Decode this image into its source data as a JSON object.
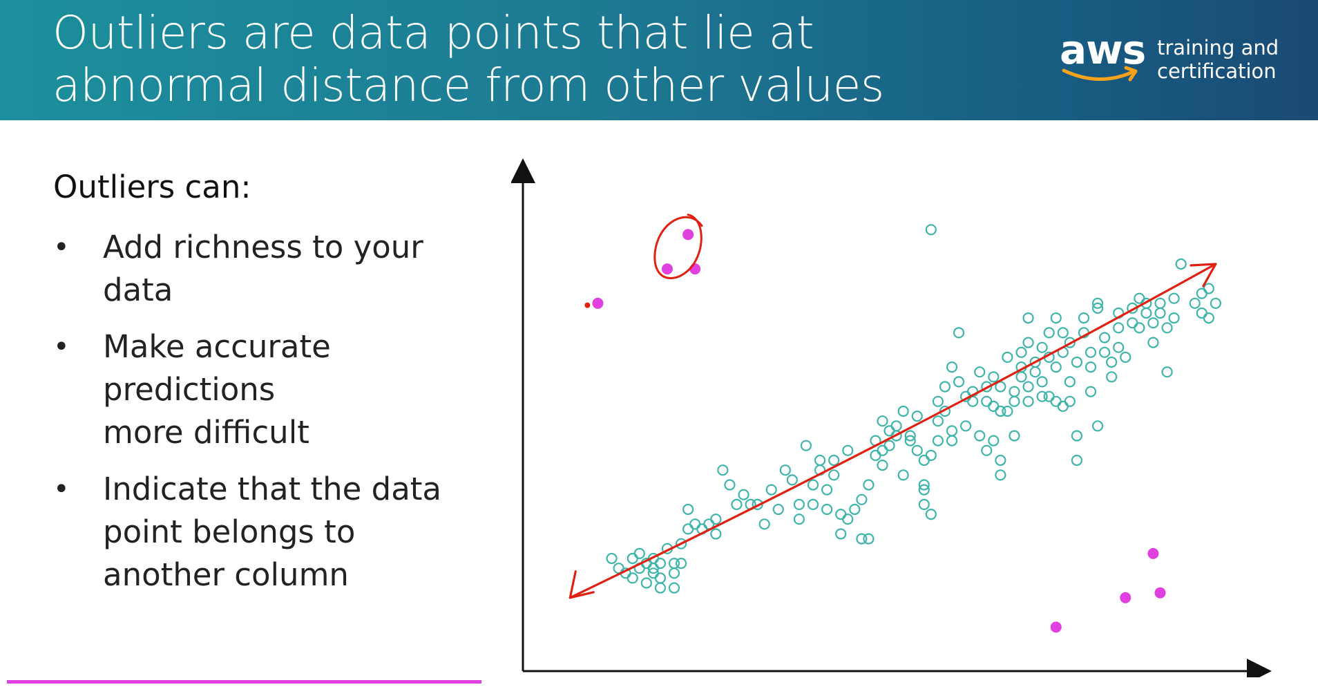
{
  "slide": {
    "title_lines": [
      "Outliers are data points that lie at",
      "abnormal distance from other values"
    ],
    "logo": {
      "wordmark": "aws",
      "tagline_lines": [
        "training and",
        "certification"
      ]
    },
    "heading": "Outliers can:",
    "bullets": [
      {
        "lines": [
          "Add richness to your",
          "data"
        ]
      },
      {
        "lines": [
          "Make accurate",
          "predictions",
          "more difficult"
        ]
      },
      {
        "lines": [
          "Indicate that the data",
          "point belongs to",
          "another column"
        ]
      }
    ]
  },
  "colors": {
    "header_teal": "#1c8f9c",
    "header_blue": "#1a4a75",
    "inlier": "#3fb5aa",
    "outlier": "#e040e0",
    "annotation": "#e02010",
    "logo_smile": "#f7a21b"
  },
  "chart_data": {
    "type": "scatter",
    "title": "",
    "xlabel": "",
    "ylabel": "",
    "xlim": [
      0,
      100
    ],
    "ylim": [
      0,
      100
    ],
    "grid": false,
    "legend": "none",
    "series": [
      {
        "kind": "inliers",
        "points": [
          [
            11,
            20
          ],
          [
            12,
            18
          ],
          [
            13,
            17
          ],
          [
            14,
            20
          ],
          [
            14,
            16
          ],
          [
            15,
            21
          ],
          [
            15,
            18
          ],
          [
            16,
            19
          ],
          [
            16,
            15
          ],
          [
            17,
            18
          ],
          [
            17,
            17
          ],
          [
            17,
            20
          ],
          [
            18,
            14
          ],
          [
            18,
            16
          ],
          [
            18,
            19
          ],
          [
            19,
            22
          ],
          [
            20,
            17
          ],
          [
            20,
            19
          ],
          [
            20,
            14
          ],
          [
            21,
            23
          ],
          [
            21,
            19
          ],
          [
            22,
            26
          ],
          [
            22,
            30
          ],
          [
            23,
            27
          ],
          [
            24,
            26
          ],
          [
            25,
            27
          ],
          [
            26,
            25
          ],
          [
            26,
            28
          ],
          [
            27,
            38
          ],
          [
            28,
            35
          ],
          [
            29,
            31
          ],
          [
            30,
            33
          ],
          [
            31,
            31
          ],
          [
            32,
            31
          ],
          [
            33,
            27
          ],
          [
            34,
            34
          ],
          [
            35,
            30
          ],
          [
            36,
            38
          ],
          [
            37,
            36
          ],
          [
            38,
            31
          ],
          [
            38,
            28
          ],
          [
            39,
            43
          ],
          [
            40,
            31
          ],
          [
            40,
            35
          ],
          [
            41,
            40
          ],
          [
            41,
            38
          ],
          [
            42,
            30
          ],
          [
            42,
            34
          ],
          [
            43,
            40
          ],
          [
            43,
            37
          ],
          [
            44,
            25
          ],
          [
            44,
            29
          ],
          [
            45,
            42
          ],
          [
            45,
            28
          ],
          [
            46,
            30
          ],
          [
            47,
            32
          ],
          [
            47,
            24
          ],
          [
            48,
            24
          ],
          [
            48,
            35
          ],
          [
            49,
            41
          ],
          [
            49,
            44
          ],
          [
            50,
            39
          ],
          [
            50,
            42
          ],
          [
            50,
            48
          ],
          [
            51,
            46
          ],
          [
            51,
            43
          ],
          [
            52,
            45
          ],
          [
            52,
            47
          ],
          [
            53,
            37
          ],
          [
            53,
            50
          ],
          [
            54,
            45
          ],
          [
            54,
            44
          ],
          [
            55,
            49
          ],
          [
            55,
            42
          ],
          [
            56,
            40
          ],
          [
            56,
            31
          ],
          [
            56,
            35
          ],
          [
            56,
            34
          ],
          [
            57,
            29
          ],
          [
            57,
            41
          ],
          [
            58,
            44
          ],
          [
            58,
            48
          ],
          [
            58,
            52
          ],
          [
            59,
            55
          ],
          [
            59,
            50
          ],
          [
            60,
            46
          ],
          [
            60,
            44
          ],
          [
            60,
            59
          ],
          [
            61,
            66
          ],
          [
            61,
            56
          ],
          [
            62,
            53
          ],
          [
            62,
            47
          ],
          [
            63,
            54
          ],
          [
            63,
            52
          ],
          [
            64,
            58
          ],
          [
            64,
            45
          ],
          [
            65,
            55
          ],
          [
            65,
            52
          ],
          [
            65,
            42
          ],
          [
            66,
            57
          ],
          [
            66,
            51
          ],
          [
            66,
            44
          ],
          [
            67,
            55
          ],
          [
            67,
            50
          ],
          [
            67,
            40
          ],
          [
            67,
            37
          ],
          [
            68,
            61
          ],
          [
            68,
            50
          ],
          [
            69,
            52
          ],
          [
            69,
            45
          ],
          [
            69,
            54
          ],
          [
            70,
            57
          ],
          [
            70,
            59
          ],
          [
            70,
            62
          ],
          [
            71,
            55
          ],
          [
            71,
            64
          ],
          [
            71,
            69
          ],
          [
            71,
            52
          ],
          [
            72,
            60
          ],
          [
            72,
            58
          ],
          [
            73,
            56
          ],
          [
            73,
            63
          ],
          [
            73,
            53
          ],
          [
            74,
            53
          ],
          [
            74,
            61
          ],
          [
            74,
            66
          ],
          [
            75,
            52
          ],
          [
            75,
            59
          ],
          [
            75,
            69
          ],
          [
            76,
            62
          ],
          [
            76,
            66
          ],
          [
            76,
            51
          ],
          [
            77,
            56
          ],
          [
            77,
            64
          ],
          [
            77,
            52
          ],
          [
            78,
            60
          ],
          [
            78,
            45
          ],
          [
            78,
            40
          ],
          [
            79,
            66
          ],
          [
            79,
            69
          ],
          [
            80,
            62
          ],
          [
            80,
            59
          ],
          [
            80,
            54
          ],
          [
            81,
            72
          ],
          [
            81,
            71
          ],
          [
            81,
            47
          ],
          [
            82,
            62
          ],
          [
            82,
            65
          ],
          [
            83,
            60
          ],
          [
            83,
            57
          ],
          [
            84,
            67
          ],
          [
            84,
            63
          ],
          [
            84,
            70
          ],
          [
            85,
            61
          ],
          [
            86,
            68
          ],
          [
            86,
            71
          ],
          [
            87,
            73
          ],
          [
            87,
            67
          ],
          [
            88,
            70
          ],
          [
            88,
            72
          ],
          [
            89,
            64
          ],
          [
            89,
            68
          ],
          [
            90,
            72
          ],
          [
            90,
            70
          ],
          [
            91,
            58
          ],
          [
            91,
            67
          ],
          [
            92,
            69
          ],
          [
            92,
            73
          ],
          [
            93,
            80
          ],
          [
            95,
            72
          ],
          [
            96,
            74
          ],
          [
            96,
            70
          ],
          [
            97,
            75
          ],
          [
            97,
            69
          ],
          [
            98,
            72
          ],
          [
            57,
            87
          ]
        ]
      },
      {
        "kind": "outliers",
        "points": [
          [
            9,
            72
          ],
          [
            19,
            79
          ],
          [
            22,
            86
          ],
          [
            23,
            79
          ],
          [
            75,
            6
          ],
          [
            85,
            12
          ],
          [
            90,
            13
          ],
          [
            89,
            21
          ]
        ]
      }
    ],
    "trend_line": {
      "from": [
        5,
        12
      ],
      "to": [
        98,
        80
      ]
    }
  }
}
